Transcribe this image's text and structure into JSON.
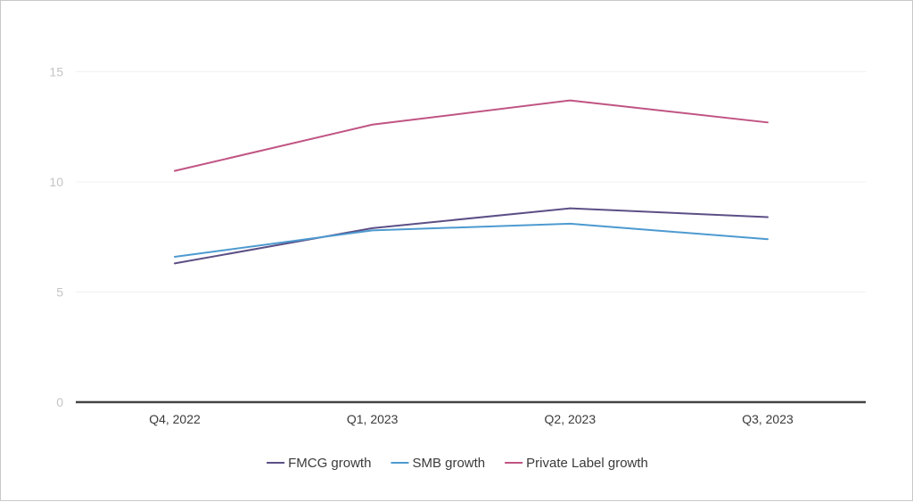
{
  "chart_data": {
    "type": "line",
    "categories": [
      "Q4, 2022",
      "Q1, 2023",
      "Q2, 2023",
      "Q3, 2023"
    ],
    "series": [
      {
        "name": "FMCG growth",
        "color": "#5c4f86",
        "values": [
          6.3,
          7.9,
          8.8,
          8.4
        ]
      },
      {
        "name": "SMB growth",
        "color": "#4d9ad0",
        "values": [
          6.6,
          7.8,
          8.1,
          7.4
        ]
      },
      {
        "name": "Private Label growth",
        "color": "#c05483",
        "values": [
          10.5,
          12.6,
          13.7,
          12.7
        ]
      }
    ],
    "yticks": [
      0,
      5,
      10,
      15
    ],
    "ylim": [
      0,
      17
    ],
    "grid": true,
    "legend_position": "bottom-center"
  }
}
